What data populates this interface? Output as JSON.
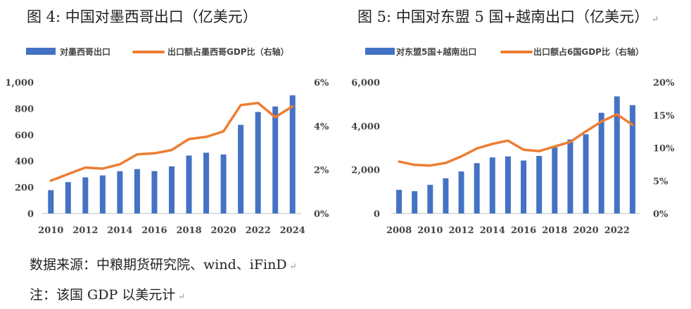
{
  "figure_titles": [
    "图 4: 中国对墨西哥出口（亿美元）",
    "图 5: 中国对东盟 5 国+越南出口（亿美元）"
  ],
  "return_mark": "↵",
  "notes": {
    "source": "数据来源：中粮期货研究院、wind、iFinD",
    "note": "注：该国 GDP 以美元计"
  },
  "colors": {
    "bar": "#4472C4",
    "line": "#ED7D31",
    "axis": "#bfbfbf"
  },
  "chart_data": [
    {
      "type": "bar+line",
      "title": "图 4: 中国对墨西哥出口（亿美元）",
      "legend": {
        "bar": "对墨西哥出口",
        "line": "出口额占墨西哥GDP比（右轴）"
      },
      "x": [
        2010,
        2011,
        2012,
        2013,
        2014,
        2015,
        2016,
        2017,
        2018,
        2019,
        2020,
        2021,
        2022,
        2023,
        2024
      ],
      "xticks": [
        "2010",
        "2012",
        "2014",
        "2016",
        "2018",
        "2020",
        "2022",
        "2024"
      ],
      "bar_values": [
        178,
        239,
        275,
        290,
        322,
        338,
        323,
        359,
        441,
        463,
        449,
        675,
        773,
        815,
        900
      ],
      "line_values": [
        1.5,
        1.8,
        2.1,
        2.05,
        2.25,
        2.7,
        2.75,
        2.9,
        3.4,
        3.5,
        3.75,
        4.95,
        5.05,
        4.4,
        4.9
      ],
      "left_axis": {
        "min": 0,
        "max": 1000,
        "step": 200,
        "labels": [
          "0",
          "200",
          "400",
          "600",
          "800",
          "1,000"
        ]
      },
      "right_axis": {
        "min": 0,
        "max": 6,
        "step": 2,
        "labels": [
          "0%",
          "2%",
          "4%",
          "6%"
        ]
      }
    },
    {
      "type": "bar+line",
      "title": "图 5: 中国对东盟 5 国+越南出口（亿美元）",
      "legend": {
        "bar": "对东盟5国+越南出口",
        "line": "出口额占6国GDP比（右轴）"
      },
      "x": [
        2008,
        2009,
        2010,
        2011,
        2012,
        2013,
        2014,
        2015,
        2016,
        2017,
        2018,
        2019,
        2020,
        2021,
        2022,
        2023
      ],
      "xticks": [
        "2008",
        "2010",
        "2012",
        "2014",
        "2016",
        "2018",
        "2020",
        "2022"
      ],
      "bar_values": [
        1080,
        1020,
        1310,
        1610,
        1920,
        2300,
        2560,
        2610,
        2420,
        2630,
        3020,
        3380,
        3620,
        4600,
        5350,
        4950
      ],
      "line_values": [
        7.9,
        7.4,
        7.3,
        7.7,
        8.7,
        9.9,
        10.6,
        11.1,
        9.7,
        9.5,
        10.2,
        10.9,
        12.5,
        14.0,
        15.1,
        13.5
      ],
      "left_axis": {
        "min": 0,
        "max": 6000,
        "step": 2000,
        "labels": [
          "0",
          "2,000",
          "4,000",
          "6,000"
        ]
      },
      "right_axis": {
        "min": 0,
        "max": 20,
        "step": 5,
        "labels": [
          "0%",
          "5%",
          "10%",
          "15%",
          "20%"
        ]
      }
    }
  ]
}
